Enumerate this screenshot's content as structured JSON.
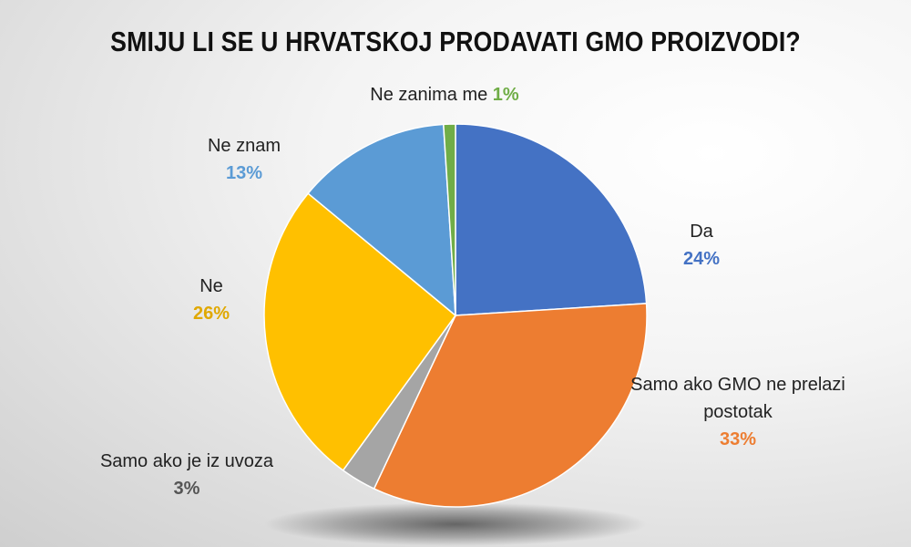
{
  "chart_data": {
    "type": "pie",
    "title": "SMIJU LI SE U HRVATSKOJ PRODAVATI GMO PROIZVODI?",
    "slices": [
      {
        "label": "Da",
        "value": 24,
        "value_label": "24%",
        "color": "#4472C4"
      },
      {
        "label": "Samo ako GMO ne prelazi postotak",
        "value": 33,
        "value_label": "33%",
        "color": "#ED7D31"
      },
      {
        "label": "Samo ako je iz uvoza",
        "value": 3,
        "value_label": "3%",
        "color": "#A5A5A5"
      },
      {
        "label": "Ne",
        "value": 26,
        "value_label": "26%",
        "color": "#FFC000"
      },
      {
        "label": "Ne znam",
        "value": 13,
        "value_label": "13%",
        "color": "#5B9BD5"
      },
      {
        "label": "Ne zanima me",
        "value": 1,
        "value_label": "1%",
        "color": "#70AD47"
      }
    ],
    "label_colors": [
      "#4472C4",
      "#ED7D31",
      "#555555",
      "#E0A800",
      "#5B9BD5",
      "#70AD47"
    ],
    "start_angle_deg": 0,
    "direction": "clockwise",
    "legend": "none"
  }
}
